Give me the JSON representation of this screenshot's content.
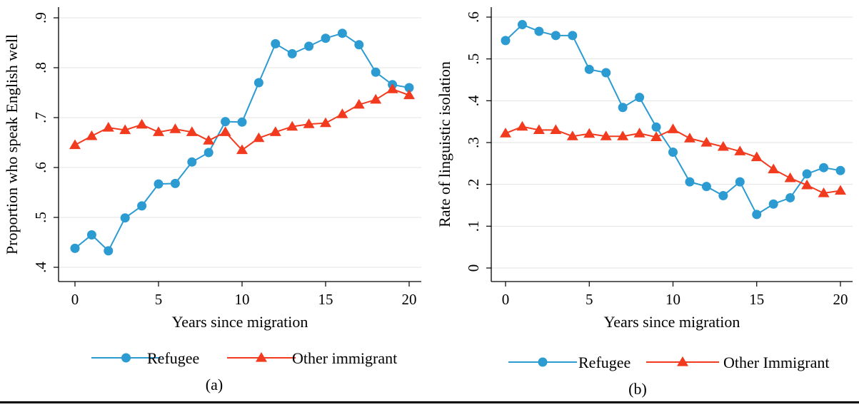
{
  "chart_data": [
    {
      "type": "line",
      "panel_label": "(a)",
      "xlabel": "Years since migration",
      "ylabel": "Proportion who speak English well",
      "xlim": [
        0,
        20
      ],
      "ylim": [
        0.4,
        0.9
      ],
      "xticks": [
        0,
        5,
        10,
        15,
        20
      ],
      "xtick_labels": [
        "0",
        "5",
        "10",
        "15",
        "20"
      ],
      "yticks": [
        0.4,
        0.5,
        0.6,
        0.7,
        0.8,
        0.9
      ],
      "ytick_labels": [
        ".4",
        ".5",
        ".6",
        ".7",
        ".8",
        ".9"
      ],
      "grid": "horizontal",
      "legend": "bottom",
      "x": [
        0,
        1,
        2,
        3,
        4,
        5,
        6,
        7,
        8,
        9,
        10,
        11,
        12,
        13,
        14,
        15,
        16,
        17,
        18,
        19,
        20
      ],
      "series": [
        {
          "name": "Refugee",
          "color": "#2b9bd2",
          "marker": "circle",
          "values": [
            0.438,
            0.465,
            0.433,
            0.499,
            0.523,
            0.567,
            0.568,
            0.611,
            0.63,
            0.692,
            0.691,
            0.77,
            0.848,
            0.828,
            0.843,
            0.859,
            0.869,
            0.846,
            0.791,
            0.766,
            0.76
          ]
        },
        {
          "name": "Other immigrant",
          "color": "#f23a1e",
          "marker": "triangle",
          "values": [
            0.645,
            0.663,
            0.68,
            0.675,
            0.686,
            0.671,
            0.677,
            0.671,
            0.654,
            0.671,
            0.635,
            0.659,
            0.671,
            0.682,
            0.687,
            0.689,
            0.707,
            0.726,
            0.736,
            0.757,
            0.745
          ]
        }
      ]
    },
    {
      "type": "line",
      "panel_label": "(b)",
      "xlabel": "Years since migration",
      "ylabel": "Rate of linguistic isolation",
      "xlim": [
        0,
        20
      ],
      "ylim": [
        0,
        0.6
      ],
      "xticks": [
        0,
        5,
        10,
        15,
        20
      ],
      "xtick_labels": [
        "0",
        "5",
        "10",
        "15",
        "20"
      ],
      "yticks": [
        0,
        0.1,
        0.2,
        0.3,
        0.4,
        0.5,
        0.6
      ],
      "ytick_labels": [
        "0",
        ".1",
        ".2",
        ".3",
        ".4",
        ".5",
        ".6"
      ],
      "grid": "horizontal",
      "legend": "bottom",
      "x": [
        0,
        1,
        2,
        3,
        4,
        5,
        6,
        7,
        8,
        9,
        10,
        11,
        12,
        13,
        14,
        15,
        16,
        17,
        18,
        19,
        20
      ],
      "series": [
        {
          "name": "Refugee",
          "color": "#2b9bd2",
          "marker": "circle",
          "values": [
            0.544,
            0.582,
            0.566,
            0.556,
            0.556,
            0.475,
            0.467,
            0.384,
            0.408,
            0.337,
            0.277,
            0.206,
            0.195,
            0.173,
            0.206,
            0.128,
            0.153,
            0.168,
            0.225,
            0.24,
            0.233
          ]
        },
        {
          "name": "Other Immigrant",
          "color": "#f23a1e",
          "marker": "triangle",
          "values": [
            0.322,
            0.338,
            0.33,
            0.33,
            0.315,
            0.321,
            0.315,
            0.315,
            0.322,
            0.313,
            0.332,
            0.31,
            0.3,
            0.29,
            0.279,
            0.265,
            0.236,
            0.215,
            0.198,
            0.179,
            0.185
          ]
        }
      ]
    }
  ]
}
